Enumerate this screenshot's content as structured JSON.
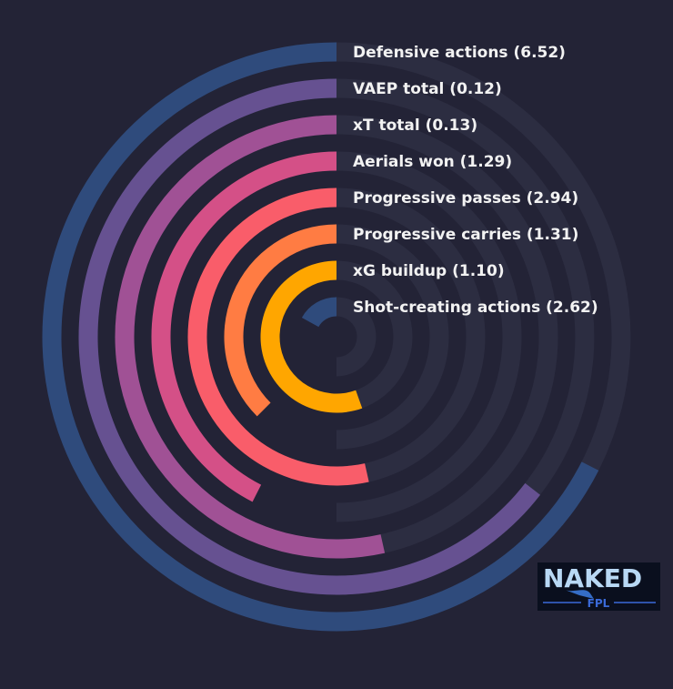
{
  "chart_data": {
    "type": "radial-bar",
    "title": "",
    "bars": [
      {
        "label": "Defensive actions (6.52)",
        "value": 6.52,
        "color": "#2f4b7c"
      },
      {
        "label": "VAEP total (0.12)",
        "value": 0.12,
        "color": "#665191"
      },
      {
        "label": "xT total (0.13)",
        "value": 0.13,
        "color": "#a05195"
      },
      {
        "label": "Aerials won (1.29)",
        "value": 1.29,
        "color": "#d45087"
      },
      {
        "label": "Progressive passes (2.94)",
        "value": 2.94,
        "color": "#f95d6a"
      },
      {
        "label": "Progressive carries (1.31)",
        "value": 1.31,
        "color": "#ff7c43"
      },
      {
        "label": "xG buildup (1.10)",
        "value": 1.1,
        "color": "#ffa600"
      },
      {
        "label": "Shot-creating actions (2.62)",
        "value": 2.62,
        "color": "#2f4b7c"
      }
    ],
    "percentile_fill": [
      0.675,
      0.645,
      0.535,
      0.425,
      0.535,
      0.375,
      0.555,
      0.17
    ],
    "track_color": "#2c2d41",
    "background": "#232336"
  },
  "logo": {
    "text_main": "NAKED",
    "text_sub": "FPL",
    "color_main": "#b8d8f4",
    "color_sub": "#3a6ad8"
  }
}
